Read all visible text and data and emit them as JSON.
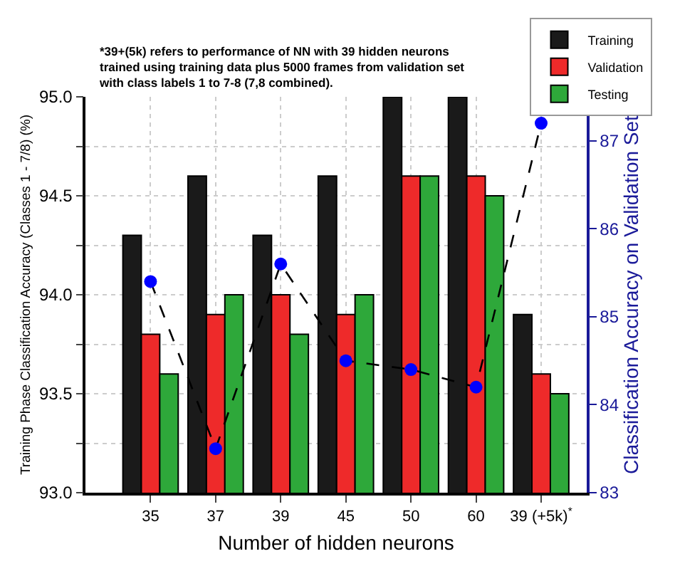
{
  "chart_data": {
    "type": "bar",
    "annotations": [
      "*39+(5k) refers to performance of NN with 39 hidden neurons trained using training data plus 5000 frames from validation set with class labels 1 to 7-8 (7,8 combined)."
    ],
    "xlabel": "Number of hidden neurons",
    "ylabel": "Training Phase Classification Accuracy (Classes 1 - 7/8) (%)",
    "y2label": "Classification Accuracy on Validation Set",
    "categories": [
      "35",
      "37",
      "39",
      "45",
      "50",
      "60",
      "39 (+5k)$^{*}$"
    ],
    "series": [
      {
        "name": "Training",
        "color": "#1a1a1a",
        "values": [
          94.3,
          94.6,
          94.3,
          94.6,
          95.0,
          95.0,
          93.9
        ]
      },
      {
        "name": "Validation",
        "color": "#ee2a2a",
        "values": [
          93.8,
          93.9,
          94.0,
          93.9,
          94.6,
          94.6,
          93.6
        ]
      },
      {
        "name": "Testing",
        "color": "#2ea83a",
        "values": [
          93.6,
          94.0,
          93.8,
          94.0,
          94.6,
          94.5,
          93.5
        ]
      },
      {
        "type": "line",
        "axis": "y2",
        "color": "#0000ff",
        "marker": "circle",
        "line_style": "dashed",
        "values": [
          85.4,
          83.5,
          85.6,
          84.5,
          84.4,
          84.2,
          87.2
        ]
      }
    ],
    "ylim": [
      93.0,
      95.0
    ],
    "yticks": [
      {
        "value": 93.0,
        "label": "93.0"
      },
      {
        "value": 93.25,
        "label": null
      },
      {
        "value": 93.5,
        "label": "93.5"
      },
      {
        "value": 93.75,
        "label": null
      },
      {
        "value": 94.0,
        "label": "94.0"
      },
      {
        "value": 94.25,
        "label": null
      },
      {
        "value": 94.5,
        "label": "94.5"
      },
      {
        "value": 94.75,
        "label": null
      },
      {
        "value": 95.0,
        "label": "95.0"
      }
    ],
    "y2lim": [
      83,
      87.5
    ],
    "y2ticks": [
      83,
      84,
      85,
      86,
      87
    ],
    "grid": true,
    "legend": "top right"
  }
}
